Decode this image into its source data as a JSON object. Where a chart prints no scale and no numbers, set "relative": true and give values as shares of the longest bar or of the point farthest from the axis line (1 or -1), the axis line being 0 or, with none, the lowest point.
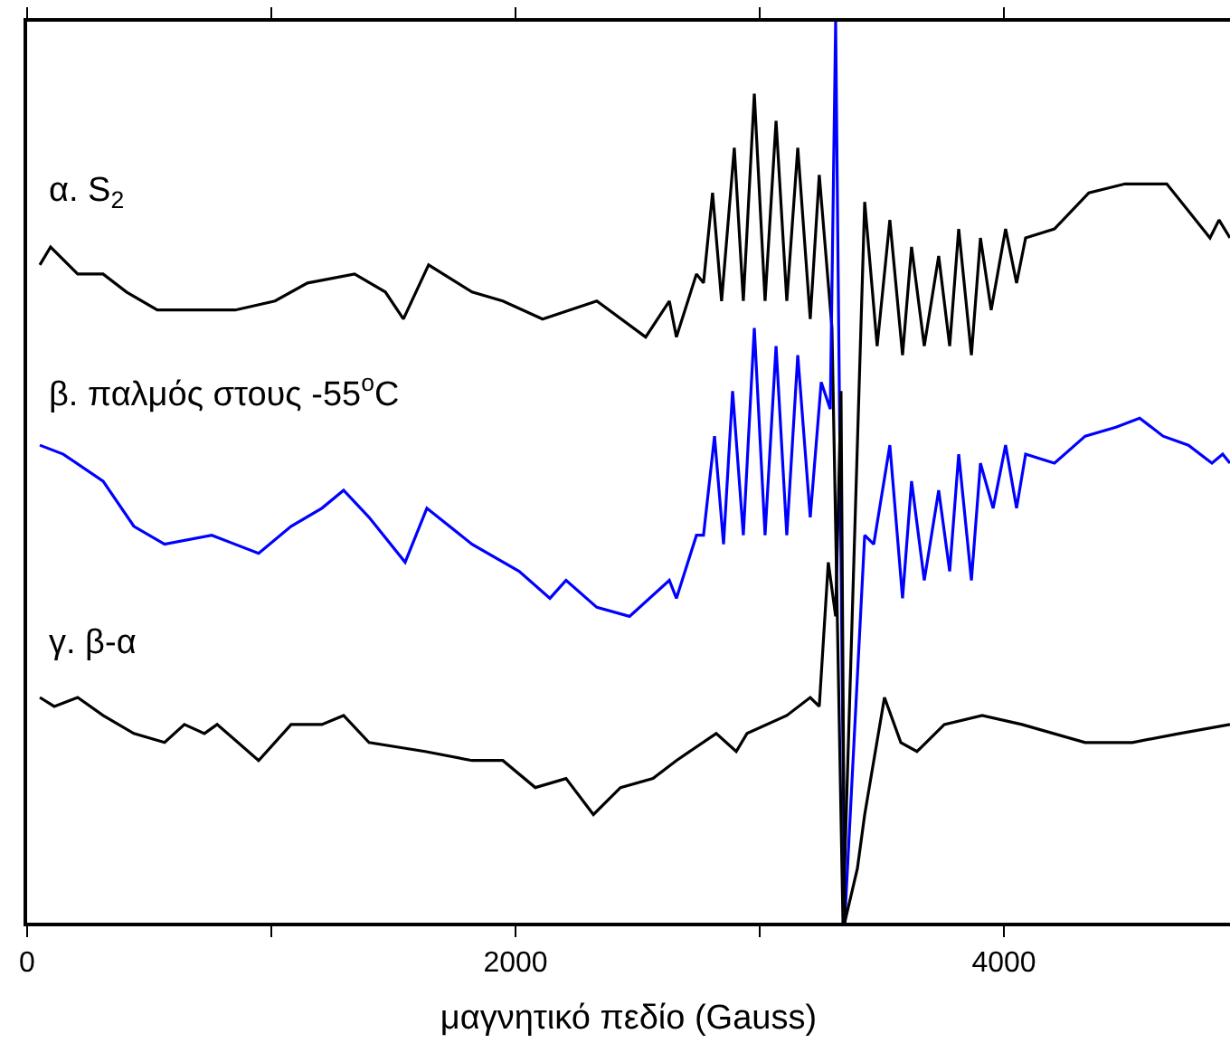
{
  "chart_data": {
    "type": "line",
    "relative": true,
    "xlabel": "μαγνητικό πεδίο (Gauss)",
    "xlim": [
      0,
      4926
    ],
    "xticks": [
      0,
      {
        "value": 1000,
        "label": null
      },
      2000,
      {
        "value": 3000,
        "label": null
      },
      4000
    ],
    "tick_labels": "x",
    "grid": false,
    "legend": false,
    "marker": "none",
    "line_style": "solid",
    "series": [
      {
        "name": "α. S$_{2}$",
        "color": "#000000",
        "x": [
          52,
          96,
          207,
          311,
          407,
          533,
          696,
          852,
          1015,
          1148,
          1341,
          1467,
          1541,
          1644,
          1822,
          1948,
          2111,
          2333,
          2533,
          2630,
          2659,
          2741,
          2770,
          2807,
          2844,
          2896,
          2933,
          2978,
          3022,
          3067,
          3111,
          3156,
          3207,
          3244,
          3296,
          3341,
          3430,
          3481,
          3533,
          3585,
          3622,
          3674,
          3733,
          3778,
          3815,
          3867,
          3904,
          3948,
          4007,
          4052,
          4089,
          4207,
          4348,
          4496,
          4622,
          4667,
          4756,
          4844,
          4881,
          4926
        ],
        "values": [
          0.73,
          0.75,
          0.72,
          0.72,
          0.7,
          0.68,
          0.68,
          0.68,
          0.69,
          0.71,
          0.72,
          0.7,
          0.67,
          0.73,
          0.7,
          0.69,
          0.67,
          0.69,
          0.65,
          0.69,
          0.65,
          0.72,
          0.71,
          0.81,
          0.69,
          0.86,
          0.69,
          0.92,
          0.69,
          0.89,
          0.69,
          0.86,
          0.67,
          0.83,
          0.66,
          0.0,
          0.8,
          0.64,
          0.78,
          0.63,
          0.75,
          0.64,
          0.74,
          0.64,
          0.77,
          0.63,
          0.76,
          0.68,
          0.77,
          0.71,
          0.76,
          0.77,
          0.81,
          0.82,
          0.82,
          0.82,
          0.79,
          0.76,
          0.78,
          0.76
        ]
      },
      {
        "name": "β. παλμός στους -55$^{o}$C",
        "color": "#0000ff",
        "x": [
          52,
          148,
          311,
          437,
          563,
          756,
          948,
          1081,
          1207,
          1296,
          1400,
          1548,
          1637,
          1822,
          2015,
          2141,
          2207,
          2333,
          2467,
          2630,
          2659,
          2741,
          2770,
          2815,
          2852,
          2889,
          2933,
          2978,
          3022,
          3067,
          3111,
          3156,
          3207,
          3252,
          3289,
          3311,
          3348,
          3430,
          3467,
          3533,
          3585,
          3622,
          3674,
          3733,
          3778,
          3815,
          3867,
          3904,
          3956,
          4007,
          4052,
          4089,
          4207,
          4333,
          4459,
          4556,
          4652,
          4756,
          4852,
          4896,
          4926
        ],
        "values": [
          0.53,
          0.52,
          0.49,
          0.44,
          0.42,
          0.43,
          0.41,
          0.44,
          0.46,
          0.48,
          0.45,
          0.4,
          0.46,
          0.42,
          0.39,
          0.36,
          0.38,
          0.35,
          0.34,
          0.38,
          0.36,
          0.43,
          0.43,
          0.54,
          0.42,
          0.59,
          0.43,
          0.66,
          0.43,
          0.64,
          0.43,
          0.63,
          0.45,
          0.6,
          0.57,
          1.0,
          0.0,
          0.43,
          0.42,
          0.53,
          0.36,
          0.49,
          0.38,
          0.48,
          0.39,
          0.52,
          0.38,
          0.51,
          0.46,
          0.53,
          0.46,
          0.52,
          0.51,
          0.54,
          0.55,
          0.56,
          0.54,
          0.53,
          0.51,
          0.52,
          0.51
        ]
      },
      {
        "name": "γ. β-α",
        "color": "#000000",
        "x": [
          52,
          111,
          207,
          311,
          437,
          563,
          644,
          726,
          778,
          948,
          1081,
          1207,
          1296,
          1400,
          1630,
          1822,
          1948,
          2081,
          2207,
          2319,
          2430,
          2563,
          2659,
          2822,
          2904,
          2948,
          3111,
          3207,
          3244,
          3281,
          3311,
          3333,
          3348,
          3400,
          3430,
          3511,
          3578,
          3644,
          3756,
          3911,
          4074,
          4333,
          4526,
          4719,
          4926
        ],
        "values": [
          0.25,
          0.24,
          0.25,
          0.23,
          0.21,
          0.2,
          0.22,
          0.21,
          0.22,
          0.18,
          0.22,
          0.22,
          0.23,
          0.2,
          0.19,
          0.18,
          0.18,
          0.15,
          0.16,
          0.12,
          0.15,
          0.16,
          0.18,
          0.21,
          0.19,
          0.21,
          0.23,
          0.25,
          0.24,
          0.4,
          0.34,
          0.59,
          0.0,
          0.06,
          0.12,
          0.25,
          0.2,
          0.19,
          0.22,
          0.23,
          0.22,
          0.2,
          0.2,
          0.21,
          0.22
        ]
      }
    ]
  }
}
